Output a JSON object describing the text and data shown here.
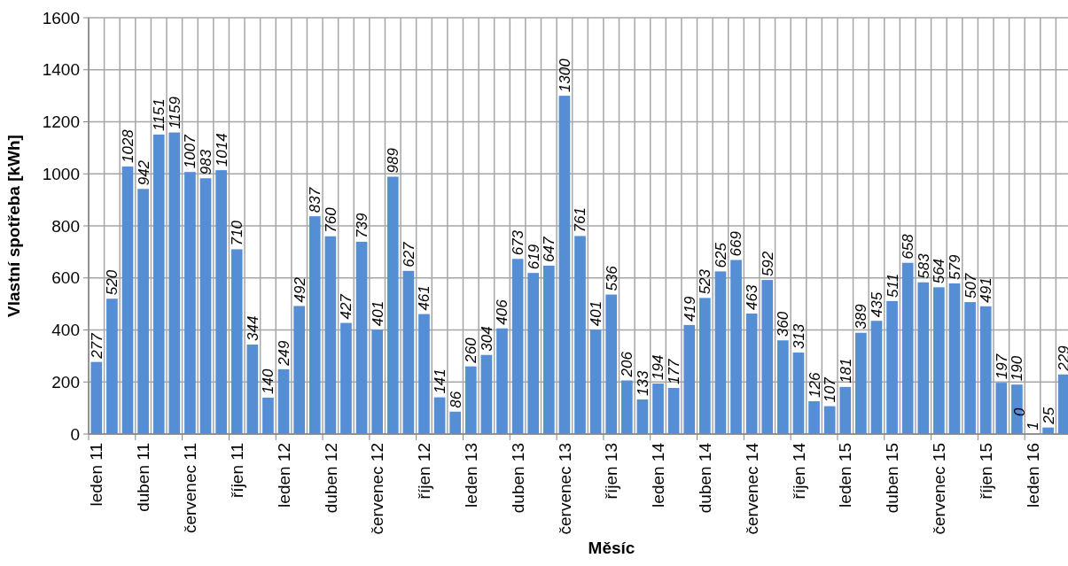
{
  "chart_data": {
    "type": "bar",
    "ylabel": "Vlastní spotřeba [kWh]",
    "xlabel": "Měsíc",
    "categories": [
      "leden 11",
      null,
      null,
      "duben 11",
      null,
      null,
      "červenec 11",
      null,
      null,
      "říjen 11",
      null,
      null,
      "leden 12",
      null,
      null,
      "duben 12",
      null,
      null,
      "červenec 12",
      null,
      null,
      "říjen 12",
      null,
      null,
      "leden 13",
      null,
      null,
      "duben 13",
      null,
      null,
      "červenec 13",
      null,
      null,
      "říjen 13",
      null,
      null,
      "leden 14",
      null,
      null,
      "duben 14",
      null,
      null,
      "červenec 14",
      null,
      null,
      "říjen 14",
      null,
      null,
      "leden 15",
      null,
      null,
      "duben 15",
      null,
      null,
      "červenec 15",
      null,
      null,
      "říjen 15",
      null,
      null,
      "leden 16",
      null,
      null
    ],
    "values": [
      277,
      520,
      1028,
      942,
      1151,
      1159,
      1007,
      983,
      1014,
      710,
      344,
      140,
      249,
      492,
      837,
      760,
      427,
      739,
      401,
      989,
      627,
      461,
      141,
      86,
      260,
      304,
      406,
      673,
      619,
      647,
      1300,
      761,
      401,
      536,
      206,
      133,
      194,
      177,
      419,
      523,
      625,
      669,
      463,
      592,
      360,
      313,
      126,
      107,
      181,
      389,
      435,
      511,
      658,
      583,
      564,
      579,
      507,
      491,
      197,
      190,
      1,
      25,
      229
    ],
    "color": "#558ed5",
    "ylim": [
      0,
      1600
    ],
    "yticks": [
      0,
      200,
      400,
      600,
      800,
      1000,
      1200,
      1400,
      1600
    ],
    "grid": true,
    "data_labels": true,
    "annotations": [
      "0"
    ]
  }
}
